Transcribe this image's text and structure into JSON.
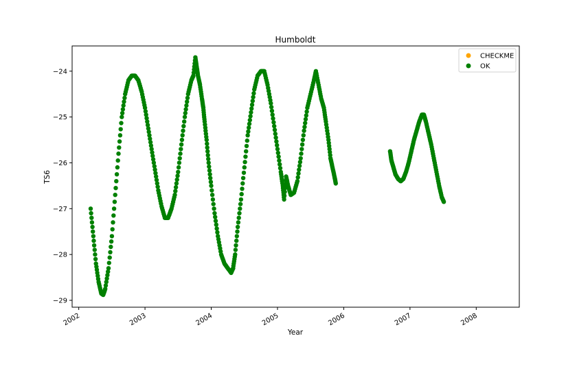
{
  "chart_data": {
    "type": "scatter",
    "title": "Humboldt",
    "xlabel": "Year",
    "ylabel": "TS6",
    "xlim": [
      2001.9,
      2008.65
    ],
    "ylim": [
      -29.15,
      -23.45
    ],
    "x_ticks": [
      2002,
      2003,
      2004,
      2005,
      2006,
      2007,
      2008
    ],
    "x_tick_labels": [
      "2002",
      "2003",
      "2004",
      "2005",
      "2006",
      "2007",
      "2008"
    ],
    "y_ticks": [
      -29,
      -28,
      -27,
      -26,
      -25,
      -24
    ],
    "y_tick_labels": [
      "−29",
      "−28",
      "−27",
      "−26",
      "−25",
      "−24"
    ],
    "grid": false,
    "legend_position": "top-right",
    "series": [
      {
        "name": "CHECKME",
        "color": "#FFA500",
        "points": []
      },
      {
        "name": "OK",
        "color": "#008000",
        "points": [
          [
            2002.18,
            -27.0
          ],
          [
            2002.22,
            -27.6
          ],
          [
            2002.26,
            -28.2
          ],
          [
            2002.3,
            -28.6
          ],
          [
            2002.34,
            -28.85
          ],
          [
            2002.37,
            -28.88
          ],
          [
            2002.4,
            -28.75
          ],
          [
            2002.45,
            -28.3
          ],
          [
            2002.5,
            -27.6
          ],
          [
            2002.55,
            -26.7
          ],
          [
            2002.6,
            -25.8
          ],
          [
            2002.65,
            -25.0
          ],
          [
            2002.7,
            -24.5
          ],
          [
            2002.75,
            -24.2
          ],
          [
            2002.8,
            -24.1
          ],
          [
            2002.85,
            -24.1
          ],
          [
            2002.9,
            -24.2
          ],
          [
            2002.95,
            -24.45
          ],
          [
            2003.0,
            -24.8
          ],
          [
            2003.05,
            -25.25
          ],
          [
            2003.1,
            -25.7
          ],
          [
            2003.15,
            -26.15
          ],
          [
            2003.2,
            -26.6
          ],
          [
            2003.25,
            -26.95
          ],
          [
            2003.3,
            -27.2
          ],
          [
            2003.35,
            -27.2
          ],
          [
            2003.4,
            -27.0
          ],
          [
            2003.45,
            -26.7
          ],
          [
            2003.5,
            -26.2
          ],
          [
            2003.55,
            -25.6
          ],
          [
            2003.6,
            -25.0
          ],
          [
            2003.65,
            -24.5
          ],
          [
            2003.7,
            -24.2
          ],
          [
            2003.73,
            -24.1
          ],
          [
            2003.76,
            -23.7
          ],
          [
            2003.78,
            -23.9
          ],
          [
            2003.8,
            -24.1
          ],
          [
            2003.83,
            -24.3
          ],
          [
            2003.86,
            -24.6
          ],
          [
            2003.88,
            -24.8
          ],
          [
            2003.9,
            -25.1
          ],
          [
            2003.93,
            -25.5
          ],
          [
            2003.96,
            -26.0
          ],
          [
            2004.0,
            -26.5
          ],
          [
            2004.05,
            -27.1
          ],
          [
            2004.1,
            -27.6
          ],
          [
            2004.15,
            -28.0
          ],
          [
            2004.2,
            -28.2
          ],
          [
            2004.25,
            -28.3
          ],
          [
            2004.3,
            -28.4
          ],
          [
            2004.33,
            -28.3
          ],
          [
            2004.36,
            -28.0
          ],
          [
            2004.4,
            -27.4
          ],
          [
            2004.45,
            -26.8
          ],
          [
            2004.5,
            -26.1
          ],
          [
            2004.55,
            -25.4
          ],
          [
            2004.6,
            -24.9
          ],
          [
            2004.65,
            -24.4
          ],
          [
            2004.7,
            -24.1
          ],
          [
            2004.75,
            -24.0
          ],
          [
            2004.8,
            -24.0
          ],
          [
            2004.85,
            -24.3
          ],
          [
            2004.9,
            -24.7
          ],
          [
            2004.95,
            -25.2
          ],
          [
            2005.0,
            -25.7
          ],
          [
            2005.05,
            -26.2
          ],
          [
            2005.08,
            -26.5
          ],
          [
            2005.1,
            -26.8
          ],
          [
            2005.13,
            -26.3
          ],
          [
            2005.16,
            -26.5
          ],
          [
            2005.2,
            -26.7
          ],
          [
            2005.25,
            -26.65
          ],
          [
            2005.3,
            -26.4
          ],
          [
            2005.35,
            -25.9
          ],
          [
            2005.4,
            -25.3
          ],
          [
            2005.45,
            -24.8
          ],
          [
            2005.5,
            -24.5
          ],
          [
            2005.55,
            -24.2
          ],
          [
            2005.58,
            -24.0
          ],
          [
            2005.62,
            -24.3
          ],
          [
            2005.66,
            -24.6
          ],
          [
            2005.7,
            -24.8
          ],
          [
            2005.73,
            -25.1
          ],
          [
            2005.77,
            -25.5
          ],
          [
            2005.8,
            -25.9
          ],
          [
            2005.83,
            -26.1
          ],
          [
            2005.86,
            -26.3
          ],
          [
            2005.88,
            -26.45
          ],
          [
            2006.7,
            -25.75
          ],
          [
            2006.72,
            -25.95
          ],
          [
            2006.75,
            -26.1
          ],
          [
            2006.78,
            -26.25
          ],
          [
            2006.82,
            -26.35
          ],
          [
            2006.86,
            -26.4
          ],
          [
            2006.9,
            -26.35
          ],
          [
            2006.94,
            -26.2
          ],
          [
            2006.98,
            -26.0
          ],
          [
            2007.02,
            -25.75
          ],
          [
            2007.06,
            -25.5
          ],
          [
            2007.1,
            -25.3
          ],
          [
            2007.14,
            -25.1
          ],
          [
            2007.18,
            -24.95
          ],
          [
            2007.21,
            -24.95
          ],
          [
            2007.24,
            -25.1
          ],
          [
            2007.28,
            -25.35
          ],
          [
            2007.32,
            -25.6
          ],
          [
            2007.36,
            -25.9
          ],
          [
            2007.4,
            -26.2
          ],
          [
            2007.44,
            -26.5
          ],
          [
            2007.48,
            -26.75
          ],
          [
            2007.51,
            -26.85
          ]
        ]
      }
    ]
  }
}
